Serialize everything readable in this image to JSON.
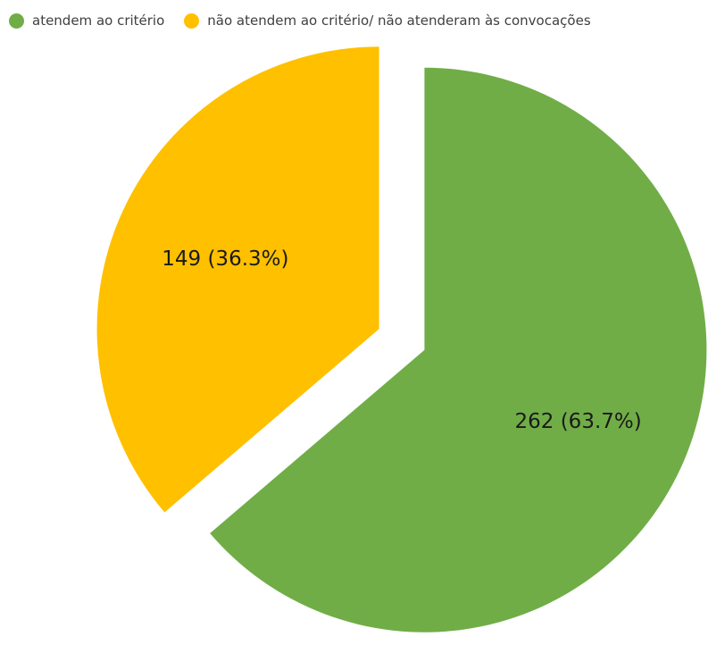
{
  "chart_data": {
    "type": "pie",
    "series": [
      {
        "name": "atendem ao critério",
        "value": 262,
        "percent": 63.7,
        "label": "262 (63.7%)",
        "color": "#70AD47"
      },
      {
        "name": "não atendem ao critério/ não atenderam às convocações",
        "value": 149,
        "percent": 36.3,
        "label": "149 (36.3%)",
        "color": "#FFC000"
      }
    ],
    "legend_position": "top-left",
    "exploded": true,
    "start": "12 o'clock, clockwise"
  }
}
